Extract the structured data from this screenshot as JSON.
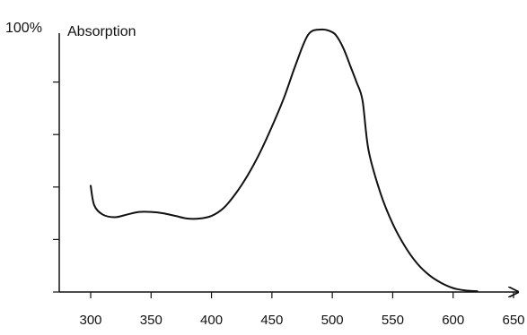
{
  "chart_data": {
    "type": "line",
    "title": "",
    "xlabel": "",
    "ylabel": "Absorption",
    "y_max_label": "100%",
    "xlim": [
      300,
      650
    ],
    "ylim": [
      0,
      100
    ],
    "grid": false,
    "x_ticks": [
      300,
      350,
      400,
      450,
      500,
      550,
      600,
      650
    ],
    "y_tick_count": 5,
    "series": [
      {
        "x": [
          300,
          303,
          310,
          320,
          330,
          340,
          350,
          360,
          370,
          380,
          390,
          400,
          410,
          420,
          430,
          440,
          450,
          460,
          470,
          480,
          490,
          500,
          505,
          510,
          515,
          520,
          525,
          530,
          540,
          550,
          560,
          570,
          580,
          590,
          600,
          610,
          620
        ],
        "y": [
          40.5,
          33,
          29.5,
          28.5,
          29.5,
          30.5,
          30.5,
          30,
          29,
          28,
          28,
          29,
          32,
          37.5,
          44.5,
          53,
          63,
          74,
          87,
          98,
          100,
          99,
          96.5,
          92,
          86,
          80,
          73,
          54,
          37.5,
          26,
          17.5,
          11,
          6.5,
          3.5,
          1.5,
          0.6,
          0.3
        ]
      }
    ]
  }
}
